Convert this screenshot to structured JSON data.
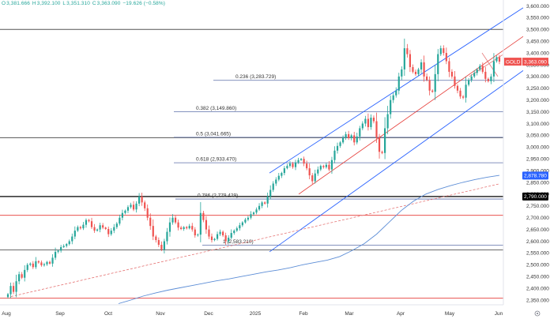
{
  "header": {
    "ohlc": [
      {
        "label": "O",
        "value": "3,381.666"
      },
      {
        "label": "H",
        "value": "3,392.100"
      },
      {
        "label": "L",
        "value": "3,351.310"
      },
      {
        "label": "C",
        "value": "3,363.090"
      }
    ],
    "change": "−19.626 (−0.58%)"
  },
  "colors": {
    "up": "#26a69a",
    "down": "#ef5350",
    "channel": "#2962ff",
    "fib_line": "#5b6ea8",
    "resistance": "#e53935",
    "support_black": "#000000",
    "ma": "#5c8dd6",
    "trendline_dashed": "#e57373"
  },
  "chart_data": {
    "type": "candlestick",
    "symbol": "GOLD",
    "last_price": "3,363.090",
    "x_axis": {
      "labels": [
        "Aug",
        "Sep",
        "Oct",
        "Nov",
        "Dec",
        "2025",
        "Feb",
        "Mar",
        "Apr",
        "May",
        "Jun"
      ]
    },
    "y_axis": {
      "range": [
        2330,
        3625
      ],
      "ticks": [
        2350,
        2400,
        2450,
        2500,
        2550,
        2600,
        2650,
        2700,
        2750,
        2800,
        2850,
        2900,
        2950,
        3000,
        3050,
        3100,
        3150,
        3200,
        3250,
        3300,
        3350,
        3400,
        3450,
        3500,
        3550,
        3600
      ],
      "tick_labels": [
        "2,350.000",
        "2,400.000",
        "2,450.000",
        "2,500.000",
        "2,550.000",
        "2,600.000",
        "2,650.000",
        "2,700.000",
        "2,750.000",
        "2,800.000",
        "2,850.000",
        "2,900.000",
        "2,950.000",
        "3,000.000",
        "3,050.000",
        "3,100.000",
        "3,150.000",
        "3,200.000",
        "3,250.000",
        "3,300.000",
        "3,350.000",
        "3,400.000",
        "3,450.000",
        "3,500.000",
        "3,550.000",
        "3,600.000"
      ],
      "badges": [
        {
          "label": "2,878.780",
          "value": 2878.78,
          "color": "#2962ff"
        },
        {
          "label": "2,790.000",
          "value": 2790,
          "color": "#000000"
        }
      ]
    },
    "fib_levels": [
      {
        "ratio_label": "0.236 (3,283.729)",
        "value": 3283.729
      },
      {
        "ratio_label": "0.382 (3,149.860)",
        "value": 3149.86
      },
      {
        "ratio_label": "0.5 (3,041.665)",
        "value": 3041.665
      },
      {
        "ratio_label": "0.618 (2,933.470)",
        "value": 2933.47
      },
      {
        "ratio_label": "0.786 (2,779.429)",
        "value": 2779.429
      },
      {
        "ratio_label": "1 (2,583.210)",
        "value": 2583.21
      }
    ],
    "horizontal_levels": [
      {
        "value": 3500,
        "color": "#555555"
      },
      {
        "value": 3040,
        "color": "#555555"
      },
      {
        "value": 2790,
        "color": "#000000"
      },
      {
        "value": 2710,
        "color": "#e53935"
      },
      {
        "value": 2563,
        "color": "#555555"
      },
      {
        "value": 2358,
        "color": "#e53935"
      }
    ],
    "series": [
      {
        "name": "GOLD",
        "values": [
          2375,
          2410,
          2385,
          2430,
          2460,
          2445,
          2478,
          2500,
          2505,
          2490,
          2515,
          2510,
          2498,
          2502,
          2512,
          2505,
          2530,
          2555,
          2560,
          2575,
          2580,
          2588,
          2600,
          2620,
          2645,
          2660,
          2655,
          2670,
          2690,
          2685,
          2660,
          2645,
          2650,
          2668,
          2658,
          2652,
          2630,
          2645,
          2660,
          2675,
          2700,
          2720,
          2730,
          2745,
          2755,
          2735,
          2760,
          2790,
          2765,
          2740,
          2700,
          2665,
          2620,
          2605,
          2585,
          2565,
          2600,
          2640,
          2680,
          2700,
          2680,
          2658,
          2652,
          2660,
          2655,
          2665,
          2650,
          2625,
          2628,
          2720,
          2690,
          2650,
          2620,
          2605,
          2610,
          2630,
          2640,
          2625,
          2600,
          2615,
          2635,
          2645,
          2655,
          2668,
          2680,
          2692,
          2700,
          2715,
          2722,
          2735,
          2750,
          2765,
          2760,
          2790,
          2818,
          2845,
          2862,
          2878,
          2890,
          2910,
          2920,
          2930,
          2915,
          2935,
          2945,
          2950,
          2930,
          2910,
          2880,
          2855,
          2888,
          2905,
          2920,
          2915,
          2925,
          2905,
          2945,
          2985,
          3005,
          3020,
          3040,
          3055,
          3038,
          3050,
          3020,
          3045,
          3080,
          3100,
          3120,
          3085,
          3125,
          3110,
          3040,
          2980,
          2975,
          3080,
          3140,
          3200,
          3220,
          3240,
          3300,
          3330,
          3420,
          3395,
          3340,
          3320,
          3310,
          3330,
          3360,
          3300,
          3285,
          3240,
          3235,
          3310,
          3395,
          3420,
          3400,
          3365,
          3320,
          3300,
          3260,
          3240,
          3215,
          3210,
          3265,
          3285,
          3300,
          3315,
          3330,
          3345,
          3320,
          3290,
          3280,
          3300,
          3365,
          3382,
          3363.09
        ]
      },
      {
        "name": "MA",
        "values": [
          2335,
          2350,
          2367,
          2380,
          2392,
          2402,
          2412,
          2422,
          2432,
          2440,
          2450,
          2460,
          2470,
          2478,
          2488,
          2500,
          2510,
          2520,
          2535,
          2560,
          2590,
          2630,
          2680,
          2730,
          2770,
          2800,
          2820,
          2836,
          2850,
          2862,
          2872,
          2880
        ]
      }
    ]
  }
}
